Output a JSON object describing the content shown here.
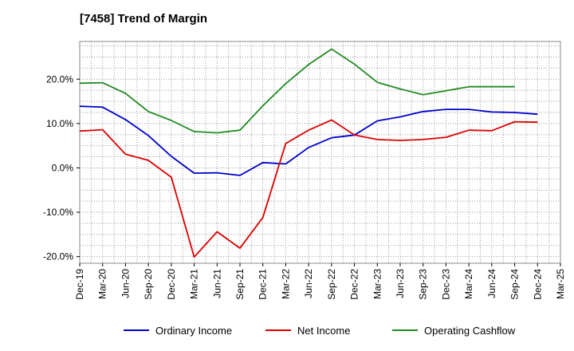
{
  "chart_data": {
    "type": "line",
    "title": "[7458]  Trend of Margin",
    "xlabel": "",
    "ylabel": "",
    "x": [
      "Dec-19",
      "Mar-20",
      "Jun-20",
      "Sep-20",
      "Dec-20",
      "Mar-21",
      "Jun-21",
      "Sep-21",
      "Dec-21",
      "Mar-22",
      "Jun-22",
      "Sep-22",
      "Dec-22",
      "Mar-23",
      "Jun-23",
      "Sep-23",
      "Dec-23",
      "Mar-24",
      "Jun-24",
      "Sep-24",
      "Dec-24",
      "Mar-25"
    ],
    "ylim": [
      -21.5,
      28.5
    ],
    "yticks": [
      -20,
      -10,
      0,
      10,
      20
    ],
    "ytick_labels": [
      "-20.0%",
      "-10.0%",
      "0.0%",
      "10.0%",
      "20.0%"
    ],
    "grid": true,
    "legend_position": "bottom",
    "series": [
      {
        "name": "Ordinary Income",
        "color": "#0000cc",
        "values": [
          13.9,
          13.7,
          10.9,
          7.3,
          2.6,
          -1.2,
          -1.1,
          -1.7,
          1.2,
          0.9,
          4.6,
          6.8,
          7.4,
          10.6,
          11.5,
          12.7,
          13.2,
          13.2,
          12.6,
          12.5,
          12.1,
          null
        ]
      },
      {
        "name": "Net Income",
        "color": "#dd0000",
        "values": [
          8.3,
          8.6,
          3.1,
          1.7,
          -2.1,
          -20.1,
          -14.4,
          -18.1,
          -11.2,
          5.5,
          8.5,
          10.8,
          7.4,
          6.4,
          6.2,
          6.4,
          6.9,
          8.5,
          8.4,
          10.4,
          10.3,
          null
        ]
      },
      {
        "name": "Operating Cashflow",
        "color": "#228b22",
        "values": [
          19.1,
          19.2,
          16.8,
          12.7,
          10.7,
          8.2,
          7.9,
          8.5,
          14.0,
          19.0,
          23.3,
          26.8,
          23.4,
          19.3,
          17.8,
          16.5,
          17.4,
          18.3,
          18.3,
          18.3,
          null,
          null
        ]
      }
    ]
  }
}
